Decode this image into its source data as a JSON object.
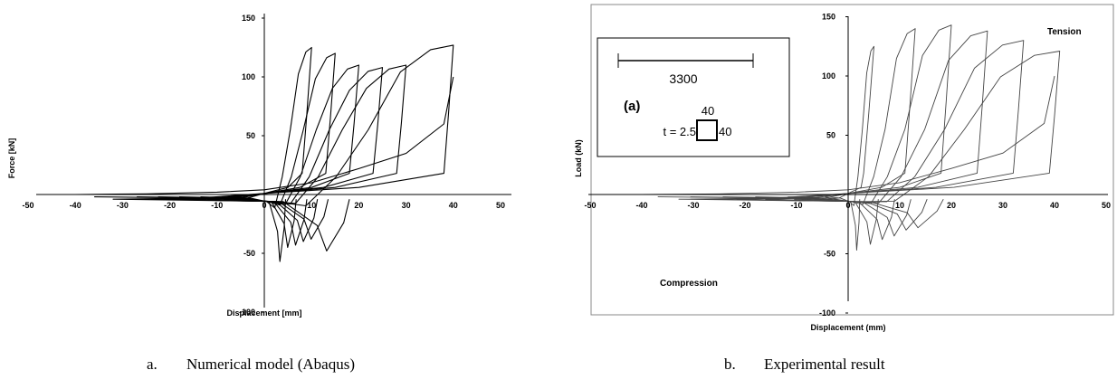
{
  "chart_data": [
    {
      "type": "line",
      "panel": "a",
      "xlabel": "Displacement [mm]",
      "ylabel": "Force [kN]",
      "xlim": [
        -50,
        50
      ],
      "ylim": [
        -100,
        150
      ],
      "xticks": [
        -50,
        -40,
        -30,
        -20,
        -10,
        0,
        10,
        20,
        30,
        40,
        50
      ],
      "xtick_labels": [
        "-50",
        "-40",
        "-30",
        "-20",
        "-10",
        "0",
        "10",
        "20",
        "30",
        "40",
        "50"
      ],
      "yticks": [
        -100,
        -50,
        0,
        50,
        100,
        150
      ],
      "ytick_labels": [
        "-100",
        "-50",
        "",
        "50",
        "100",
        "150"
      ],
      "grid": false,
      "line_color": "#000000",
      "cycles": [
        {
          "amplitude": 10,
          "peak_tension": 125,
          "peak_compression": -57
        },
        {
          "amplitude": 15,
          "peak_tension": 120,
          "peak_compression": -45
        },
        {
          "amplitude": 20,
          "peak_tension": 110,
          "peak_compression": -43
        },
        {
          "amplitude": 25,
          "peak_tension": 108,
          "peak_compression": -40
        },
        {
          "amplitude": 30,
          "peak_tension": 110,
          "peak_compression": -38
        },
        {
          "amplitude": 40,
          "peak_tension": 127,
          "peak_compression": -48
        }
      ]
    },
    {
      "type": "line",
      "panel": "b",
      "xlabel": "Displacement (mm)",
      "ylabel": "Load (kN)",
      "xlim": [
        -50,
        50
      ],
      "ylim": [
        -100,
        150
      ],
      "xticks": [
        -50,
        -40,
        -30,
        -20,
        -10,
        0,
        10,
        20,
        30,
        40,
        50
      ],
      "xtick_labels": [
        "-50",
        "-40",
        "-30",
        "-20",
        "-10",
        "0",
        "10",
        "20",
        "30",
        "40",
        "50"
      ],
      "yticks": [
        -100,
        -50,
        0,
        50,
        100,
        150
      ],
      "ytick_labels": [
        "-100",
        "-50",
        "",
        "50",
        "100",
        "150"
      ],
      "grid": false,
      "line_color": "#444444",
      "annotations": [
        "Tension",
        "Compression"
      ],
      "inset": {
        "panel_label": "(a)",
        "length": "3300",
        "width": "40",
        "height": "40",
        "thickness": "t = 2.5"
      },
      "cycles": [
        {
          "amplitude": 5,
          "peak_tension": 125,
          "peak_compression": -47
        },
        {
          "amplitude": 13,
          "peak_tension": 140,
          "peak_compression": -42
        },
        {
          "amplitude": 20,
          "peak_tension": 143,
          "peak_compression": -38
        },
        {
          "amplitude": 27,
          "peak_tension": 138,
          "peak_compression": -35
        },
        {
          "amplitude": 34,
          "peak_tension": 130,
          "peak_compression": -30
        },
        {
          "amplitude": 41,
          "peak_tension": 121,
          "peak_compression": -28
        }
      ]
    }
  ],
  "captions": {
    "a": {
      "letter": "a.",
      "text": "Numerical model (Abaqus)"
    },
    "b": {
      "letter": "b.",
      "text": "Experimental result"
    }
  }
}
